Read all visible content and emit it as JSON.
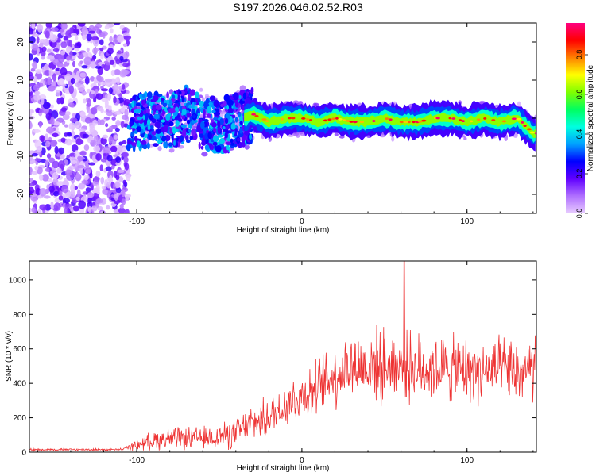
{
  "title": "S197.2026.046.02.52.R03",
  "chart_data": [
    {
      "type": "heatmap",
      "name": "spectrogram",
      "xlabel": "Height of straight line (km)",
      "ylabel": "Frequency (Hz)",
      "xlim": [
        -165,
        142
      ],
      "ylim": [
        -25,
        25
      ],
      "x_ticks": [
        -100,
        0,
        100
      ],
      "y_ticks": [
        -20,
        -10,
        0,
        10,
        20
      ],
      "ridge_trace": {
        "x": [
          -100,
          -90,
          -80,
          -70,
          -60,
          -50,
          -40,
          -30,
          -20,
          -10,
          0,
          10,
          20,
          30,
          40,
          50,
          60,
          70,
          80,
          90,
          100,
          110,
          120,
          130,
          140
        ],
        "y": [
          -1,
          0,
          -1,
          1,
          -1,
          -2,
          -1,
          1,
          -1,
          0,
          0,
          -1,
          0,
          -1,
          -1,
          0,
          -1,
          -1,
          0,
          0,
          -1,
          0,
          -1,
          0,
          -4
        ]
      },
      "description_values": {
        "noise_region_x": [
          -165,
          -105
        ],
        "noise_frequency_range": [
          -25,
          25
        ]
      },
      "colorbar": {
        "label": "Normalized spectral amplitude",
        "ticks": [
          0.0,
          0.2,
          0.4,
          0.6,
          0.8
        ],
        "range": [
          0.0,
          0.96
        ],
        "colors": [
          "#e8ccff",
          "#b070ff",
          "#6000ff",
          "#0000ff",
          "#00a0ff",
          "#00ffe0",
          "#00ff60",
          "#80ff00",
          "#ffff00",
          "#ff8000",
          "#ff0000",
          "#ff0080"
        ]
      }
    },
    {
      "type": "line",
      "name": "snr",
      "xlabel": "Height of straight line (km)",
      "ylabel": "SNR (10 * v/v)",
      "xlim": [
        -165,
        142
      ],
      "ylim": [
        0,
        1110
      ],
      "x_ticks": [
        -100,
        0,
        100
      ],
      "y_ticks": [
        0,
        200,
        400,
        600,
        800,
        1000
      ],
      "color": "#ee3333",
      "envelope": {
        "x": [
          -165,
          -110,
          -100,
          -90,
          -80,
          -70,
          -60,
          -50,
          -40,
          -30,
          -20,
          -10,
          0,
          10,
          20,
          30,
          40,
          50,
          60,
          70,
          80,
          90,
          100,
          110,
          120,
          130,
          142
        ],
        "mean": [
          15,
          15,
          40,
          70,
          80,
          80,
          80,
          90,
          110,
          170,
          200,
          280,
          330,
          380,
          450,
          500,
          500,
          500,
          510,
          480,
          490,
          480,
          470,
          470,
          480,
          460,
          480
        ],
        "spread": [
          8,
          8,
          35,
          70,
          80,
          80,
          80,
          90,
          110,
          130,
          140,
          170,
          180,
          200,
          230,
          250,
          250,
          260,
          260,
          240,
          240,
          240,
          230,
          220,
          220,
          230,
          240
        ]
      },
      "peak": {
        "x": 62,
        "y": 1110
      }
    }
  ]
}
